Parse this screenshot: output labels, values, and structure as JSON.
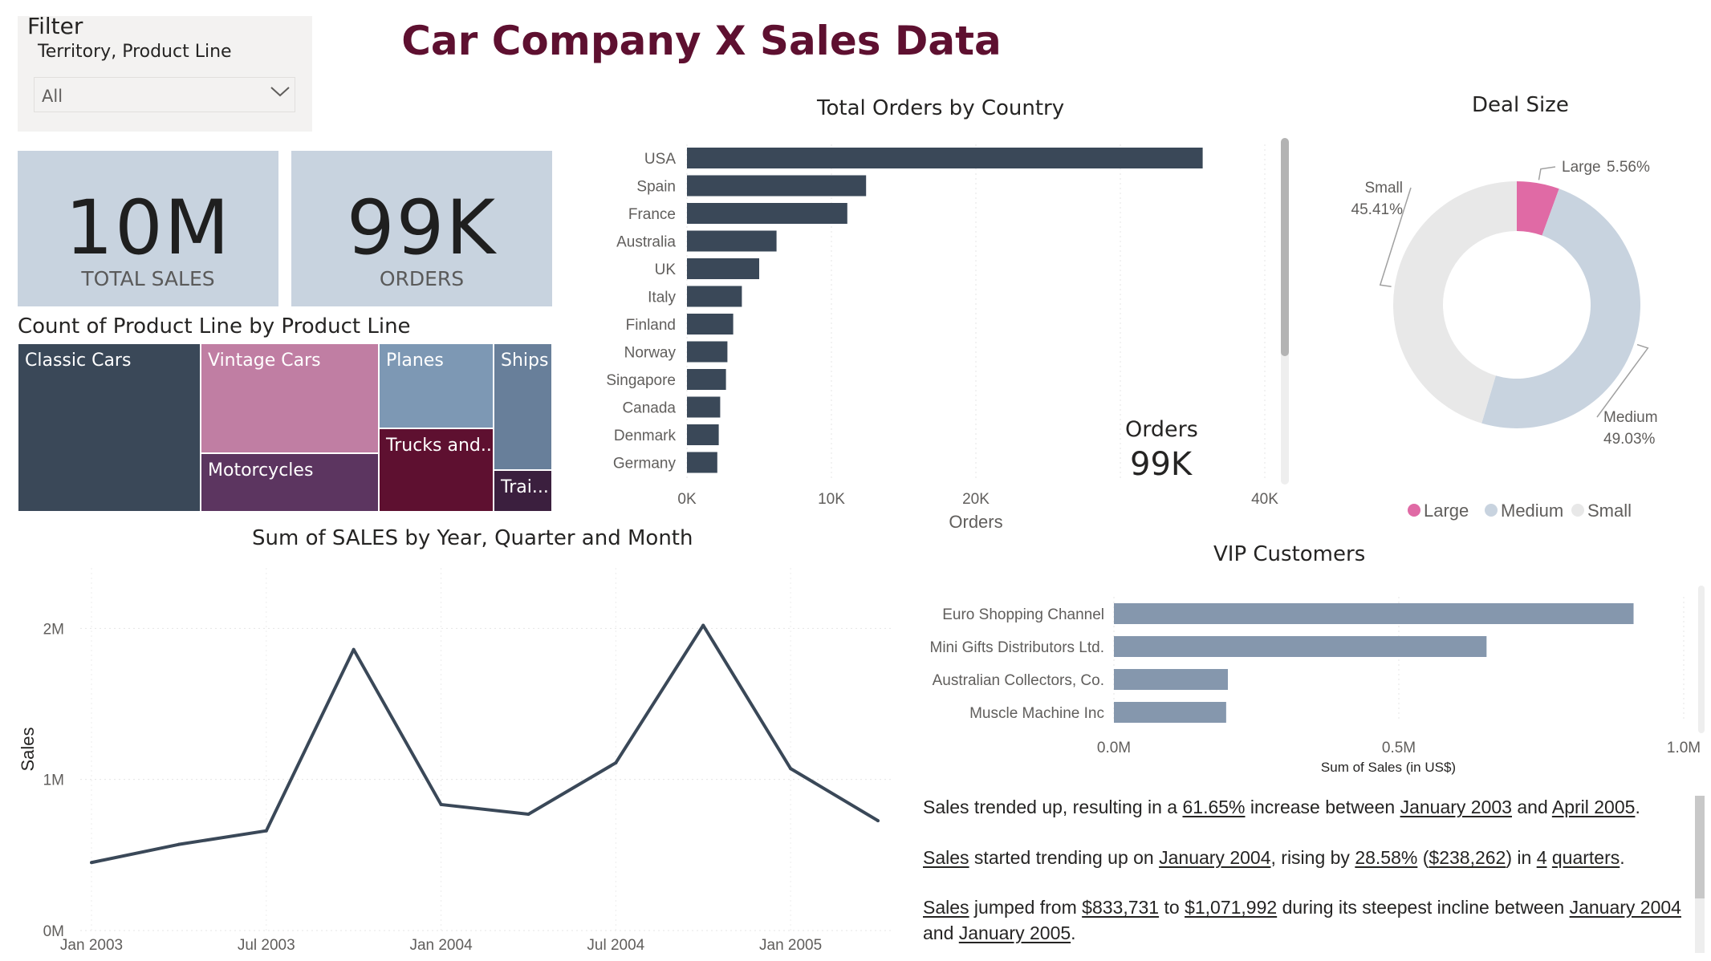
{
  "filter": {
    "title": "Filter",
    "subtitle": "Territory, Product Line",
    "value": "All"
  },
  "page_title": "Car Company X Sales Data",
  "cards": {
    "sales": {
      "value": "10M",
      "label": "TOTAL SALES"
    },
    "orders": {
      "value": "99K",
      "label": "ORDERS"
    }
  },
  "treemap": {
    "title": "Count of Product Line by Product Line",
    "tiles": [
      "Classic Cars",
      "Vintage Cars",
      "Motorcycles",
      "Planes",
      "Trucks and...",
      "Ships",
      "Trai..."
    ]
  },
  "colors": {
    "dark": "#3a4858",
    "title": "#5e1030",
    "large": "#e06aa5",
    "medium": "#c8d3df",
    "small": "#e8e8e8",
    "vip": "#8597ad"
  },
  "chart_data": [
    {
      "type": "bar",
      "title": "Total Orders by Country",
      "orientation": "horizontal",
      "categories": [
        "USA",
        "Spain",
        "France",
        "Australia",
        "UK",
        "Italy",
        "Finland",
        "Norway",
        "Singapore",
        "Canada",
        "Denmark",
        "Germany"
      ],
      "values": [
        35700,
        12400,
        11100,
        6200,
        5000,
        3800,
        3200,
        2800,
        2700,
        2300,
        2200,
        2100
      ],
      "xlabel": "Orders",
      "xticks": [
        "0K",
        "10K",
        "20K",
        "40K"
      ],
      "xlim": [
        0,
        40000
      ],
      "overlay": {
        "label": "Orders",
        "value": "99K"
      }
    },
    {
      "type": "pie",
      "donut": true,
      "title": "Deal Size",
      "slices": [
        {
          "name": "Large",
          "value": 5.56,
          "label": "5.56%"
        },
        {
          "name": "Medium",
          "value": 49.03,
          "label": "49.03%"
        },
        {
          "name": "Small",
          "value": 45.41,
          "label": "45.41%"
        }
      ],
      "legend": [
        "Large",
        "Medium",
        "Small"
      ]
    },
    {
      "type": "line",
      "title": "Sum of SALES by Year, Quarter and Month",
      "x": [
        "Jan 2003",
        "Apr 2003",
        "Jul 2003",
        "Oct 2003",
        "Jan 2004",
        "Apr 2004",
        "Jul 2004",
        "Oct 2004",
        "Jan 2005",
        "Apr 2005"
      ],
      "xticks": [
        "Jan 2003",
        "Jul 2003",
        "Jan 2004",
        "Jul 2004",
        "Jan 2005"
      ],
      "values": [
        450000,
        570000,
        660000,
        1860000,
        834000,
        770000,
        1110000,
        2020000,
        1072000,
        727000
      ],
      "ylabel": "Sales",
      "yticks": [
        "0M",
        "1M",
        "2M"
      ],
      "ylim": [
        0,
        2400000
      ],
      "xlim": [
        0,
        9
      ]
    },
    {
      "type": "bar",
      "orientation": "horizontal",
      "title": "VIP Customers",
      "categories": [
        "Euro Shopping Channel",
        "Mini Gifts Distributors Ltd.",
        "Australian Collectors, Co.",
        "Muscle Machine Inc"
      ],
      "values": [
        912000,
        654000,
        200000,
        197000
      ],
      "xlabel": "Sum of Sales (in US$)",
      "xticks": [
        "0.0M",
        "0.5M",
        "1.0M"
      ],
      "xlim": [
        0,
        1000000
      ]
    }
  ],
  "narrative": {
    "p1": {
      "a": "Sales trended up, resulting in a ",
      "b": "61.65%",
      "c": " increase between ",
      "d": "January 2003",
      "e": " and ",
      "f": "April 2005",
      "g": "."
    },
    "p2": {
      "a": "Sales",
      "b": " started trending up on ",
      "c": "January 2004",
      "d": ", rising by ",
      "e": "28.58%",
      "f": " (",
      "g": "$238,262",
      "h": ") in ",
      "i": "4",
      "j": " ",
      "k": "quarters",
      "l": "."
    },
    "p3": {
      "a": "Sales",
      "b": " jumped from ",
      "c": "$833,731",
      "d": " to ",
      "e": "$1,071,992",
      "f": " during its steepest incline between ",
      "g": "January 2004",
      "h": " and ",
      "i": "January 2005",
      "j": "."
    }
  }
}
